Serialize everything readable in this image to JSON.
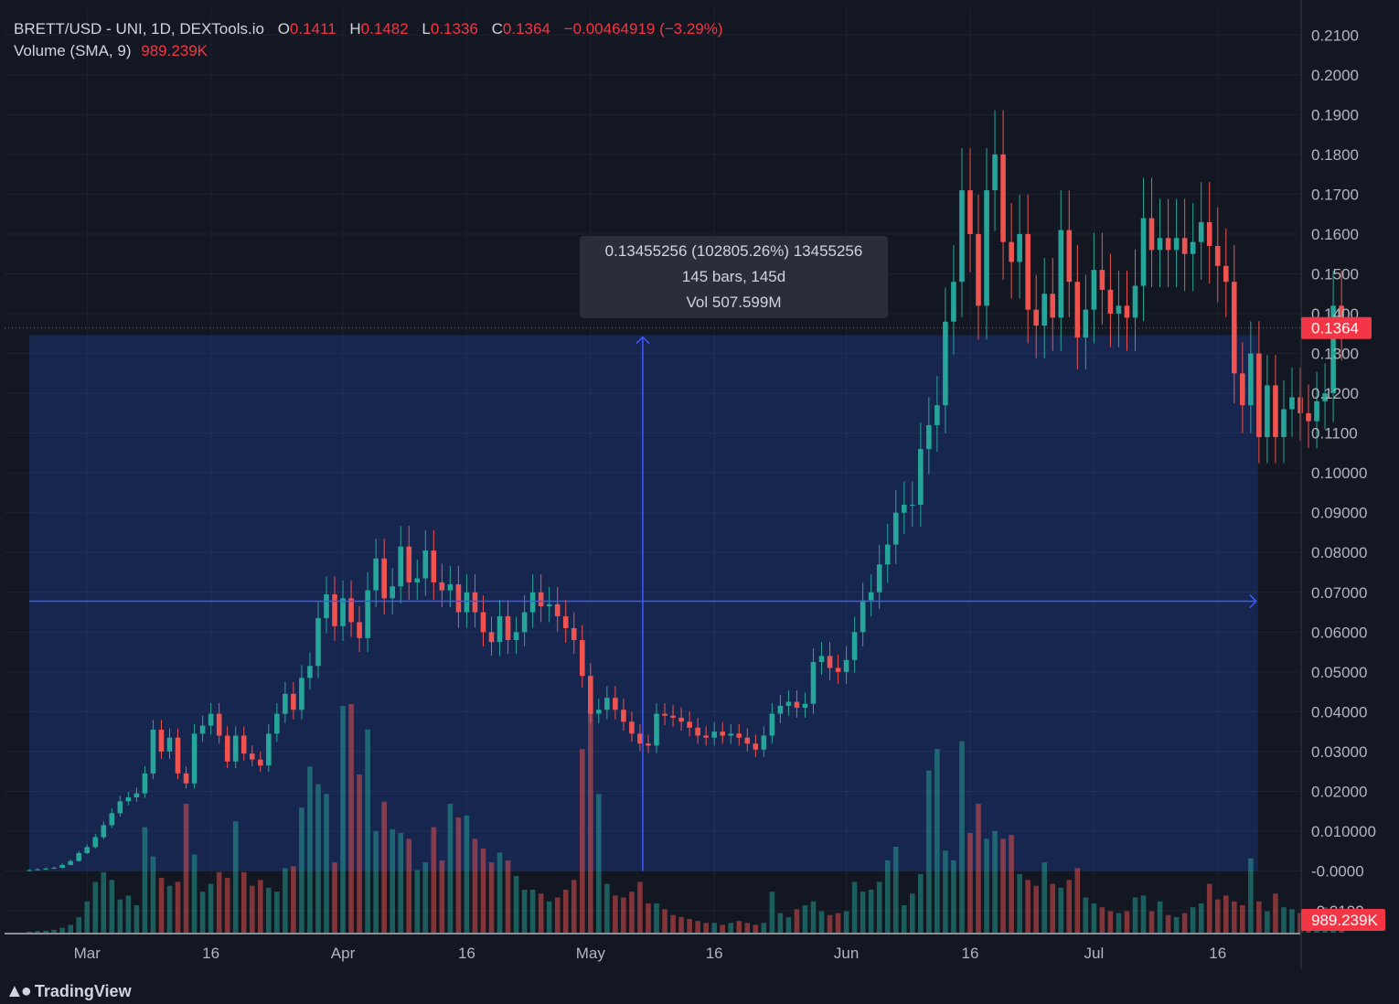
{
  "legend": {
    "symbol": "BRETT/USD - UNI, 1D, DEXTools.io",
    "o_label": "O",
    "o": "0.1411",
    "h_label": "H",
    "h": "0.1482",
    "l_label": "L",
    "l": "0.1336",
    "c_label": "C",
    "c": "0.1364",
    "change": "−0.00464919 (−3.29%)",
    "volume_label": "Volume (SMA, 9)",
    "volume_value": "989.239K"
  },
  "measure_tooltip": {
    "line1": "0.13455256 (102805.26%) 13455256",
    "line2": "145 bars, 145d",
    "line3": "Vol 507.599M"
  },
  "branding": {
    "logo_text": "TradingView"
  },
  "colors": {
    "bg": "#131722",
    "up": "#26a69a",
    "down": "#ef5350",
    "measure": "#3d5afe",
    "price_tag": "#f23645"
  },
  "chart_data": {
    "type": "candlestick",
    "y_ticks": [
      "0.2100",
      "0.2000",
      "0.1900",
      "0.1800",
      "0.1700",
      "0.1600",
      "0.1500",
      "0.1400",
      "0.1300",
      "0.1200",
      "0.1100",
      "0.10000",
      "0.09000",
      "0.08000",
      "0.07000",
      "0.06000",
      "0.05000",
      "0.04000",
      "0.03000",
      "0.02000",
      "0.010000",
      "-0.0000",
      "-0.0100"
    ],
    "y_tick_values": [
      0.21,
      0.2,
      0.19,
      0.18,
      0.17,
      0.16,
      0.15,
      0.14,
      0.13,
      0.12,
      0.11,
      0.1,
      0.09,
      0.08,
      0.07,
      0.06,
      0.05,
      0.04,
      0.03,
      0.02,
      0.01,
      0.0,
      -0.01
    ],
    "ylim": [
      -0.0155,
      0.2165
    ],
    "x_ticks": [
      {
        "label": "Mar",
        "date": "2024-03-01"
      },
      {
        "label": "16",
        "date": "2024-03-16"
      },
      {
        "label": "Apr",
        "date": "2024-04-01"
      },
      {
        "label": "16",
        "date": "2024-04-16"
      },
      {
        "label": "May",
        "date": "2024-05-01"
      },
      {
        "label": "16",
        "date": "2024-05-16"
      },
      {
        "label": "Jun",
        "date": "2024-06-01"
      },
      {
        "label": "16",
        "date": "2024-06-16"
      },
      {
        "label": "Jul",
        "date": "2024-07-01"
      },
      {
        "label": "16",
        "date": "2024-07-16"
      }
    ],
    "xlim": [
      "2024-02-20",
      "2024-07-26"
    ],
    "first_date": "2024-02-23",
    "current_price": "0.1364",
    "current_price_value": 0.1364,
    "volume_tag": "989.239K",
    "measure": {
      "start_date": "2024-02-23",
      "end_date": "2024-07-17",
      "low": 0.0,
      "high": 0.1346
    },
    "close": [
      0.0002,
      0.0004,
      0.0006,
      0.0008,
      0.0015,
      0.0025,
      0.0045,
      0.006,
      0.0085,
      0.0115,
      0.0145,
      0.0175,
      0.0185,
      0.0195,
      0.0245,
      0.0355,
      0.03,
      0.0335,
      0.0245,
      0.022,
      0.0345,
      0.0365,
      0.0395,
      0.034,
      0.0275,
      0.034,
      0.0295,
      0.028,
      0.0265,
      0.0345,
      0.0395,
      0.0445,
      0.0405,
      0.0485,
      0.0515,
      0.0635,
      0.0695,
      0.0615,
      0.0685,
      0.0625,
      0.0585,
      0.0705,
      0.0785,
      0.0685,
      0.0715,
      0.0815,
      0.0725,
      0.0735,
      0.0805,
      0.0725,
      0.0705,
      0.072,
      0.065,
      0.07,
      0.065,
      0.06,
      0.0575,
      0.064,
      0.058,
      0.06,
      0.065,
      0.07,
      0.0665,
      0.067,
      0.064,
      0.061,
      0.058,
      0.049,
      0.0395,
      0.0405,
      0.0435,
      0.0405,
      0.0375,
      0.0345,
      0.032,
      0.0315,
      0.0395,
      0.039,
      0.0385,
      0.0375,
      0.036,
      0.034,
      0.0335,
      0.035,
      0.034,
      0.0345,
      0.0335,
      0.032,
      0.0305,
      0.034,
      0.0395,
      0.0415,
      0.0425,
      0.041,
      0.042,
      0.0525,
      0.054,
      0.051,
      0.05,
      0.053,
      0.06,
      0.068,
      0.07,
      0.077,
      0.082,
      0.09,
      0.092,
      0.092,
      0.106,
      0.112,
      0.117,
      0.138,
      0.148,
      0.171,
      0.16,
      0.142,
      0.171,
      0.18,
      0.158,
      0.153,
      0.16,
      0.141,
      0.137,
      0.145,
      0.139,
      0.161,
      0.148,
      0.134,
      0.141,
      0.151,
      0.146,
      0.14,
      0.142,
      0.139,
      0.147,
      0.164,
      0.156,
      0.159,
      0.156,
      0.159,
      0.155,
      0.158,
      0.163,
      0.157,
      0.152,
      0.148,
      0.125,
      0.117,
      0.13,
      0.109,
      0.122,
      0.109,
      0.116,
      0.119,
      0.115,
      0.113,
      0.118,
      0.12,
      0.142,
      0.1364
    ],
    "volume": [
      0.5,
      0.8,
      1.0,
      1.5,
      2.5,
      4.0,
      8.0,
      16.0,
      26.0,
      31.0,
      27.0,
      17.0,
      19.0,
      14.0,
      54.0,
      39.0,
      28.0,
      24.0,
      26.0,
      66.0,
      40.0,
      21.0,
      25.0,
      31.0,
      28.0,
      57.0,
      31.0,
      24.0,
      27.0,
      23.0,
      21.0,
      33.0,
      34.0,
      64.0,
      85.0,
      76.0,
      71.0,
      36.0,
      116.0,
      117.0,
      81.0,
      104.0,
      52.0,
      67.0,
      53.0,
      51.0,
      48.0,
      32.0,
      36.0,
      54.0,
      37.0,
      66.0,
      59.0,
      60.0,
      48.0,
      43.0,
      36.0,
      41.0,
      37.0,
      29.0,
      22.0,
      22.0,
      20.0,
      16.0,
      18.0,
      22.0,
      27.0,
      94.0,
      117.0,
      71.0,
      25.0,
      19.0,
      18.0,
      21.0,
      26.0,
      15.0,
      15.0,
      12.0,
      9.0,
      8.0,
      7.0,
      6.0,
      5.0,
      5.0,
      4.0,
      5.0,
      6.0,
      5.0,
      4.0,
      5.0,
      21.0,
      10.0,
      8.0,
      12.0,
      14.0,
      16.0,
      11.0,
      9.0,
      10.0,
      11.0,
      26.0,
      21.0,
      22.0,
      26.0,
      37.0,
      44.0,
      14.0,
      20.0,
      30.0,
      83.0,
      94.0,
      42.0,
      37.0,
      98.0,
      51.0,
      66.0,
      48.0,
      52.0,
      48.0,
      50.0,
      30.0,
      27.0,
      24.0,
      36.0,
      25.0,
      23.0,
      27.0,
      33.0,
      18.0,
      15.0,
      13.0,
      11.0,
      10.0,
      11.0,
      18.0,
      19.0,
      11.0,
      16.0,
      9.0,
      8.0,
      10.0,
      13.0,
      15.0,
      25.0,
      17.0,
      19.0,
      16.0,
      14.0,
      38.0,
      16.0,
      11.0,
      20.0,
      13.0,
      12.0,
      10.0,
      9.0,
      12.0,
      13.0,
      11.0,
      10.0
    ]
  }
}
